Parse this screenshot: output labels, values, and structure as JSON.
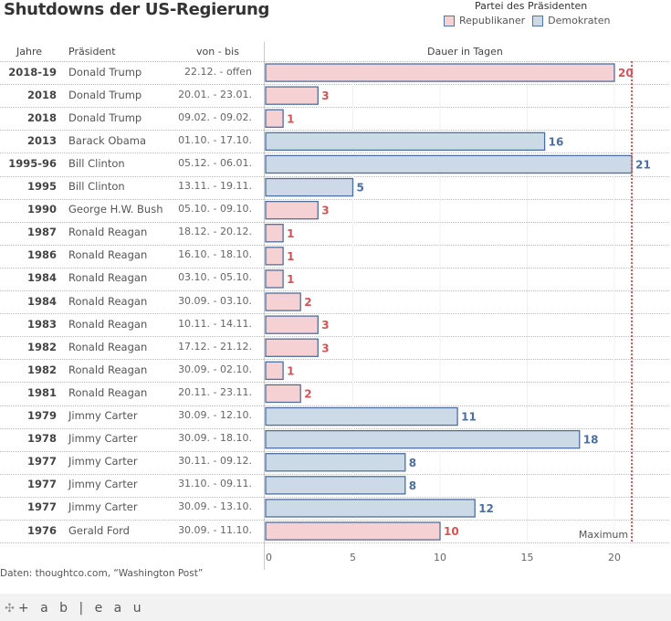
{
  "title": "Shutdowns der US-Regierung",
  "legend": {
    "title": "Partei des Präsidenten",
    "items": [
      {
        "label": "Republikaner",
        "party": "R"
      },
      {
        "label": "Demokraten",
        "party": "D"
      }
    ]
  },
  "colors": {
    "R_fill": "#f6d1d3",
    "D_fill": "#ccd9e7",
    "bar_stroke": "#4e6f9e",
    "R_label": "#d45357",
    "D_label": "#4e6f9e",
    "max_line": "#d45357"
  },
  "headers": {
    "year": "Jahre",
    "president": "Präsident",
    "dates": "von - bis",
    "axis_title": "Dauer in Tagen"
  },
  "reference_line": {
    "label": "Maximum",
    "value": 21
  },
  "source": "Daten: thoughtco.com, “Washington Post”",
  "footer": {
    "logo_text": "+ a b | e a u"
  },
  "chart_data": {
    "type": "bar",
    "orientation": "horizontal",
    "title": "Shutdowns der US-Regierung",
    "xlabel": "Dauer in Tagen",
    "xlim": [
      0,
      23.5
    ],
    "xticks": [
      0,
      5,
      10,
      15,
      20
    ],
    "legend_position": "top-right",
    "rows": [
      {
        "year": "2018-19",
        "president": "Donald Trump",
        "dates": "22.12. - offen",
        "days": 20,
        "party": "R"
      },
      {
        "year": "2018",
        "president": "Donald Trump",
        "dates": "20.01. - 23.01.",
        "days": 3,
        "party": "R"
      },
      {
        "year": "2018",
        "president": "Donald Trump",
        "dates": "09.02. - 09.02.",
        "days": 1,
        "party": "R"
      },
      {
        "year": "2013",
        "president": "Barack Obama",
        "dates": "01.10. - 17.10.",
        "days": 16,
        "party": "D"
      },
      {
        "year": "1995-96",
        "president": "Bill Clinton",
        "dates": "05.12. - 06.01.",
        "days": 21,
        "party": "D"
      },
      {
        "year": "1995",
        "president": "Bill Clinton",
        "dates": "13.11. - 19.11.",
        "days": 5,
        "party": "D"
      },
      {
        "year": "1990",
        "president": "George H.W. Bush",
        "dates": "05.10. - 09.10.",
        "days": 3,
        "party": "R"
      },
      {
        "year": "1987",
        "president": "Ronald Reagan",
        "dates": "18.12. - 20.12.",
        "days": 1,
        "party": "R"
      },
      {
        "year": "1986",
        "president": "Ronald Reagan",
        "dates": "16.10. - 18.10.",
        "days": 1,
        "party": "R"
      },
      {
        "year": "1984",
        "president": "Ronald Reagan",
        "dates": "03.10. - 05.10.",
        "days": 1,
        "party": "R"
      },
      {
        "year": "1984",
        "president": "Ronald Reagan",
        "dates": "30.09. - 03.10.",
        "days": 2,
        "party": "R"
      },
      {
        "year": "1983",
        "president": "Ronald Reagan",
        "dates": "10.11. - 14.11.",
        "days": 3,
        "party": "R"
      },
      {
        "year": "1982",
        "president": "Ronald Reagan",
        "dates": "17.12. - 21.12.",
        "days": 3,
        "party": "R"
      },
      {
        "year": "1982",
        "president": "Ronald Reagan",
        "dates": "30.09. - 02.10.",
        "days": 1,
        "party": "R"
      },
      {
        "year": "1981",
        "president": "Ronald Reagan",
        "dates": "20.11. - 23.11.",
        "days": 2,
        "party": "R"
      },
      {
        "year": "1979",
        "president": "Jimmy Carter",
        "dates": "30.09. - 12.10.",
        "days": 11,
        "party": "D"
      },
      {
        "year": "1978",
        "president": "Jimmy Carter",
        "dates": "30.09. - 18.10.",
        "days": 18,
        "party": "D"
      },
      {
        "year": "1977",
        "president": "Jimmy Carter",
        "dates": "30.11. - 09.12.",
        "days": 8,
        "party": "D"
      },
      {
        "year": "1977",
        "president": "Jimmy Carter",
        "dates": "31.10. - 09.11.",
        "days": 8,
        "party": "D"
      },
      {
        "year": "1977",
        "president": "Jimmy Carter",
        "dates": "30.09. - 13.10.",
        "days": 12,
        "party": "D"
      },
      {
        "year": "1976",
        "president": "Gerald Ford",
        "dates": "30.09. - 11.10.",
        "days": 10,
        "party": "R"
      }
    ]
  }
}
